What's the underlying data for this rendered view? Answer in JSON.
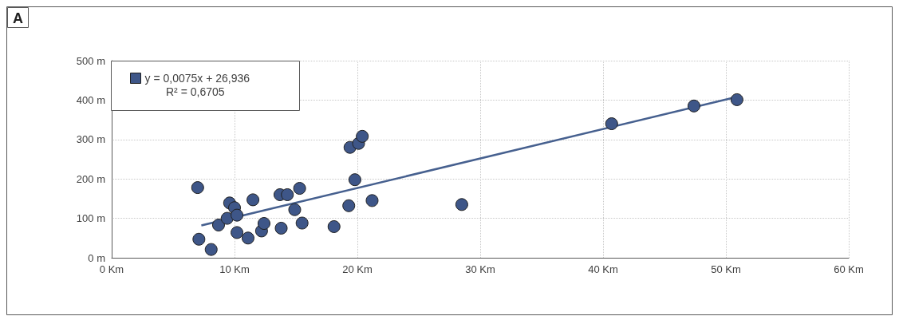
{
  "chart_data": {
    "type": "scatter",
    "title": "A",
    "annotations": [
      "R² = 0,6705"
    ],
    "xlim": [
      0,
      60
    ],
    "xticks": [
      {
        "value": 0,
        "label": "0 Km"
      },
      {
        "value": 10,
        "label": "10 Km"
      },
      {
        "value": 20,
        "label": "20 Km"
      },
      {
        "value": 30,
        "label": "30 Km"
      },
      {
        "value": 40,
        "label": "40 Km"
      },
      {
        "value": 50,
        "label": "50 Km"
      },
      {
        "value": 60,
        "label": "60 Km"
      }
    ],
    "ylim": [
      0,
      500
    ],
    "yticks": [
      {
        "value": 0,
        "label": "0 m"
      },
      {
        "value": 100,
        "label": "100 m"
      },
      {
        "value": 200,
        "label": "200 m"
      },
      {
        "value": 300,
        "label": "300 m"
      },
      {
        "value": 400,
        "label": "400 m"
      },
      {
        "value": 500,
        "label": "500 m"
      }
    ],
    "grid": true,
    "legend": "top left",
    "marker": "circle",
    "series": [
      {
        "name": "y = 0,0075x + 26,936",
        "color": "#3e5688",
        "x": [
          7.0,
          7.1,
          8.1,
          8.7,
          9.4,
          9.6,
          10.0,
          10.2,
          10.2,
          11.1,
          11.5,
          12.2,
          12.4,
          13.7,
          14.3,
          13.8,
          15.3,
          14.9,
          15.5,
          18.1,
          19.3,
          19.8,
          19.4,
          20.1,
          20.4,
          21.2,
          28.5,
          40.7,
          47.4,
          50.9
        ],
        "values": [
          178,
          47,
          21,
          83,
          100,
          139,
          127,
          108,
          64,
          50,
          147,
          68,
          87,
          160,
          160,
          75,
          176,
          122,
          88,
          79,
          132,
          198,
          280,
          290,
          308,
          145,
          135,
          340,
          385,
          401
        ]
      },
      {
        "type": "line",
        "color": "#46608f",
        "line_style": "solid",
        "marker": "none",
        "x": [
          7.3,
          51
        ],
        "values": [
          82,
          409
        ]
      }
    ]
  }
}
